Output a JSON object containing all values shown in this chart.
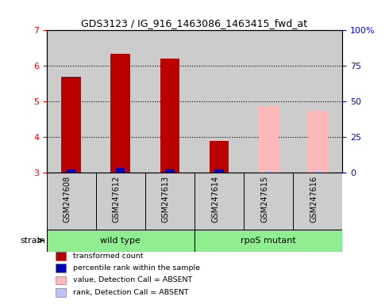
{
  "title": "GDS3123 / IG_916_1463086_1463415_fwd_at",
  "samples": [
    "GSM247608",
    "GSM247612",
    "GSM247613",
    "GSM247614",
    "GSM247615",
    "GSM247616"
  ],
  "red_values": [
    5.7,
    6.35,
    6.2,
    3.9,
    null,
    null
  ],
  "pink_values": [
    null,
    null,
    null,
    null,
    4.9,
    4.75
  ],
  "blue_values": [
    3.08,
    3.13,
    3.12,
    3.08,
    null,
    null
  ],
  "light_blue_values": [
    null,
    null,
    null,
    null,
    3.05,
    3.04
  ],
  "ylim_left": [
    3,
    7
  ],
  "ylim_right": [
    0,
    100
  ],
  "yticks_left": [
    3,
    4,
    5,
    6,
    7
  ],
  "yticks_right": [
    0,
    25,
    50,
    75,
    100
  ],
  "ytick_labels_right": [
    "0",
    "25",
    "50",
    "75",
    "100%"
  ],
  "red_color": "#bb0000",
  "pink_color": "#ffb8b8",
  "blue_color": "#0000bb",
  "light_blue_color": "#c0c0ff",
  "bar_width": 0.4,
  "groups": [
    {
      "label": "wild type",
      "start": 0,
      "end": 3
    },
    {
      "label": "rpoS mutant",
      "start": 3,
      "end": 6
    }
  ],
  "strain_label": "strain",
  "legend_items": [
    {
      "color": "#bb0000",
      "label": "transformed count"
    },
    {
      "color": "#0000bb",
      "label": "percentile rank within the sample"
    },
    {
      "color": "#ffb8b8",
      "label": "value, Detection Call = ABSENT"
    },
    {
      "color": "#c0c0ff",
      "label": "rank, Detection Call = ABSENT"
    }
  ],
  "col_bg_color": "#cccccc",
  "plot_bg_color": "#ffffff",
  "group_color": "#90ee90"
}
